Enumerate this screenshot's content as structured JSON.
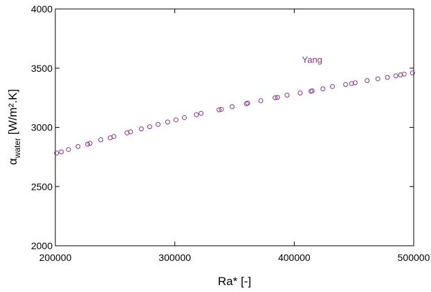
{
  "chart_data": {
    "type": "scatter",
    "xlabel": "Ra* [-]",
    "ylabel": {
      "symbol": "α",
      "subscript": "water",
      "unit": " [W/m².K]"
    },
    "xlim": [
      200000,
      500000
    ],
    "ylim": [
      2000,
      4000
    ],
    "x_ticks": [
      200000,
      300000,
      400000,
      500000
    ],
    "y_ticks": [
      2000,
      2500,
      3000,
      3500,
      4000
    ],
    "grid": false,
    "legend": "none",
    "marker_color": "#8b2f8f",
    "annotations": [
      {
        "text": "Yang",
        "x": 415000,
        "y": 3545
      }
    ],
    "series": [
      {
        "marker": "open-circle",
        "x": [
          201000,
          205000,
          211000,
          219000,
          227000,
          229000,
          238000,
          246000,
          249000,
          260000,
          263000,
          272000,
          279000,
          286000,
          294000,
          301000,
          308000,
          318000,
          322000,
          337000,
          339000,
          348000,
          360000,
          361000,
          372000,
          384000,
          386000,
          394000,
          405000,
          414000,
          415000,
          424000,
          432000,
          443000,
          448000,
          451000,
          461000,
          470000,
          478000,
          485000,
          489000,
          492000,
          499000
        ],
        "y": [
          2783,
          2793,
          2813,
          2838,
          2858,
          2865,
          2895,
          2912,
          2923,
          2953,
          2963,
          2987,
          3005,
          3025,
          3045,
          3063,
          3082,
          3107,
          3118,
          3148,
          3152,
          3175,
          3200,
          3205,
          3225,
          3250,
          3253,
          3272,
          3290,
          3305,
          3308,
          3325,
          3345,
          3362,
          3370,
          3377,
          3395,
          3410,
          3422,
          3435,
          3443,
          3450,
          3460
        ]
      }
    ]
  }
}
